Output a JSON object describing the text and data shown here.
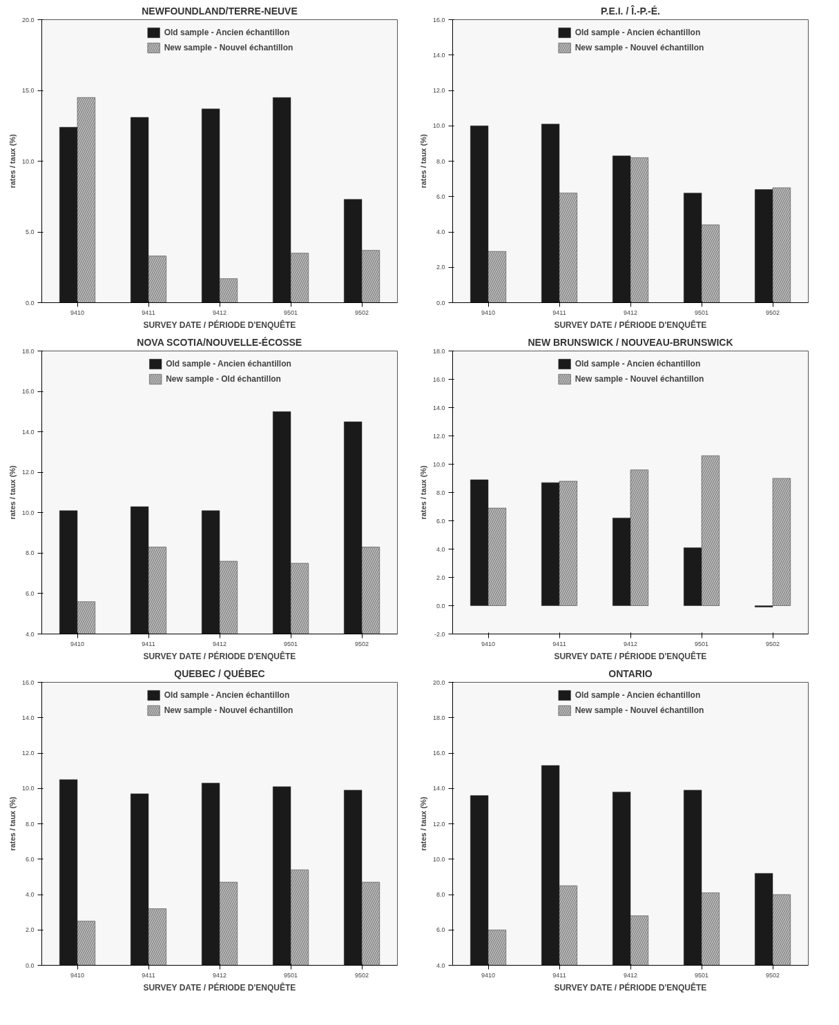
{
  "chart_data": [
    {
      "type": "bar",
      "title": "NEWFOUNDLAND/TERRE-NEUVE",
      "xlabel": "SURVEY DATE / PÉRIODE D'ENQUÊTE",
      "ylabel": "rates / taux (%)",
      "categories": [
        "9410",
        "9411",
        "9412",
        "9501",
        "9502"
      ],
      "series": [
        {
          "name": "Old sample - Ancien échantillon",
          "color": "#1a1a1a",
          "values": [
            12.4,
            13.1,
            13.7,
            14.5,
            7.3
          ]
        },
        {
          "name": "New sample - Nouvel échantillon",
          "color": "#8c8c8c",
          "values": [
            14.5,
            3.3,
            1.7,
            3.5,
            3.7
          ]
        }
      ],
      "ylim": [
        0,
        20
      ],
      "yticks": [
        {
          "value": 0,
          "label": "0.0"
        },
        {
          "value": 5,
          "label": "5.0"
        },
        {
          "value": 10,
          "label": "10.0"
        },
        {
          "value": 15,
          "label": "15.0"
        },
        {
          "value": 20,
          "label": "20.0"
        }
      ],
      "legend": "top",
      "grid": false
    },
    {
      "type": "bar",
      "title": "P.E.I. / Î.-P.-É.",
      "xlabel": "SURVEY DATE / PÉRIODE D'ENQUÊTE",
      "ylabel": "rates / taux (%)",
      "categories": [
        "9410",
        "9411",
        "9412",
        "9501",
        "9502"
      ],
      "series": [
        {
          "name": "Old sample - Ancien échantillon",
          "color": "#1a1a1a",
          "values": [
            10.0,
            10.1,
            8.3,
            6.2,
            6.4
          ]
        },
        {
          "name": "New sample - Nouvel échantillon",
          "color": "#8c8c8c",
          "values": [
            2.9,
            6.2,
            8.2,
            4.4,
            6.5
          ]
        }
      ],
      "ylim": [
        0,
        16
      ],
      "yticks": [
        {
          "value": 0,
          "label": "0.0"
        },
        {
          "value": 2,
          "label": "2.0"
        },
        {
          "value": 4,
          "label": "4.0"
        },
        {
          "value": 6,
          "label": "6.0"
        },
        {
          "value": 8,
          "label": "8.0"
        },
        {
          "value": 10,
          "label": "10.0"
        },
        {
          "value": 12,
          "label": "12.0"
        },
        {
          "value": 14,
          "label": "14.0"
        },
        {
          "value": 16,
          "label": "16.0"
        }
      ],
      "legend": "top",
      "grid": false
    },
    {
      "type": "bar",
      "title": "NOVA SCOTIA/NOUVELLE-ÉCOSSE",
      "xlabel": "SURVEY DATE / PÉRIODE D'ENQUÊTE",
      "ylabel": "rates / taux (%)",
      "categories": [
        "9410",
        "9411",
        "9412",
        "9501",
        "9502"
      ],
      "series": [
        {
          "name": "Old sample - Ancien échantillon",
          "color": "#1a1a1a",
          "values": [
            10.1,
            10.3,
            10.1,
            15.0,
            14.5
          ]
        },
        {
          "name": "New sample - Old échantillon",
          "color": "#8c8c8c",
          "values": [
            5.6,
            8.3,
            7.6,
            7.5,
            8.3
          ]
        }
      ],
      "ylim": [
        4,
        18
      ],
      "yticks": [
        {
          "value": 4,
          "label": "4.0"
        },
        {
          "value": 6,
          "label": "6.0"
        },
        {
          "value": 8,
          "label": "8.0"
        },
        {
          "value": 10,
          "label": "10.0"
        },
        {
          "value": 12,
          "label": "12.0"
        },
        {
          "value": 14,
          "label": "14.0"
        },
        {
          "value": 16,
          "label": "16.0"
        },
        {
          "value": 18,
          "label": "18.0"
        }
      ],
      "legend": "top",
      "grid": false
    },
    {
      "type": "bar",
      "title": "NEW BRUNSWICK / NOUVEAU-BRUNSWICK",
      "xlabel": "SURVEY DATE / PÉRIODE D'ENQUÊTE",
      "ylabel": "rates / taux (%)",
      "categories": [
        "9410",
        "9411",
        "9412",
        "9501",
        "9502"
      ],
      "series": [
        {
          "name": "Old sample - Ancien échantillon",
          "color": "#1a1a1a",
          "values": [
            8.9,
            8.7,
            6.2,
            4.1,
            -0.1
          ]
        },
        {
          "name": "New sample - Nouvel échantillon",
          "color": "#8c8c8c",
          "values": [
            6.9,
            8.8,
            9.6,
            10.6,
            9.0
          ]
        }
      ],
      "ylim": [
        -2,
        18
      ],
      "yticks": [
        {
          "value": -2,
          "label": "-2.0"
        },
        {
          "value": 0,
          "label": "0.0"
        },
        {
          "value": 2,
          "label": "2.0"
        },
        {
          "value": 4,
          "label": "4.0"
        },
        {
          "value": 6,
          "label": "6.0"
        },
        {
          "value": 8,
          "label": "8.0"
        },
        {
          "value": 10,
          "label": "10.0"
        },
        {
          "value": 12,
          "label": "12.0"
        },
        {
          "value": 14,
          "label": "14.0"
        },
        {
          "value": 16,
          "label": "16.0"
        },
        {
          "value": 18,
          "label": "18.0"
        }
      ],
      "legend": "top",
      "grid": false
    },
    {
      "type": "bar",
      "title": "QUEBEC / QUÉBEC",
      "xlabel": "SURVEY DATE / PÉRIODE D'ENQUÊTE",
      "ylabel": "rates / taux (%)",
      "categories": [
        "9410",
        "9411",
        "9412",
        "9501",
        "9502"
      ],
      "series": [
        {
          "name": "Old sample - Ancien échantillon",
          "color": "#1a1a1a",
          "values": [
            10.5,
            9.7,
            10.3,
            10.1,
            9.9
          ]
        },
        {
          "name": "New sample - Nouvel échantillon",
          "color": "#8c8c8c",
          "values": [
            2.5,
            3.2,
            4.7,
            5.4,
            4.7
          ]
        }
      ],
      "ylim": [
        0,
        16
      ],
      "yticks": [
        {
          "value": 0,
          "label": "0.0"
        },
        {
          "value": 2,
          "label": "2.0"
        },
        {
          "value": 4,
          "label": "4.0"
        },
        {
          "value": 6,
          "label": "6.0"
        },
        {
          "value": 8,
          "label": "8.0"
        },
        {
          "value": 10,
          "label": "10.0"
        },
        {
          "value": 12,
          "label": "12.0"
        },
        {
          "value": 14,
          "label": "14.0"
        },
        {
          "value": 16,
          "label": "16.0"
        }
      ],
      "legend": "top",
      "grid": false
    },
    {
      "type": "bar",
      "title": "ONTARIO",
      "xlabel": "SURVEY DATE / PÉRIODE D'ENQUÊTE",
      "ylabel": "rates / taux (%)",
      "categories": [
        "9410",
        "9411",
        "9412",
        "9501",
        "9502"
      ],
      "series": [
        {
          "name": "Old sample - Ancien échantillon",
          "color": "#1a1a1a",
          "values": [
            13.6,
            15.3,
            13.8,
            13.9,
            9.2
          ]
        },
        {
          "name": "New sample - Nouvel échantillon",
          "color": "#8c8c8c",
          "values": [
            6.0,
            8.5,
            6.8,
            8.1,
            8.0
          ]
        }
      ],
      "ylim": [
        4,
        20
      ],
      "yticks": [
        {
          "value": 4,
          "label": "4.0"
        },
        {
          "value": 6,
          "label": "6.0"
        },
        {
          "value": 8,
          "label": "8.0"
        },
        {
          "value": 10,
          "label": "10.0"
        },
        {
          "value": 12,
          "label": "12.0"
        },
        {
          "value": 14,
          "label": "14.0"
        },
        {
          "value": 16,
          "label": "16.0"
        },
        {
          "value": 18,
          "label": "18.0"
        },
        {
          "value": 20,
          "label": "20.0"
        }
      ],
      "legend": "top",
      "grid": false
    }
  ]
}
